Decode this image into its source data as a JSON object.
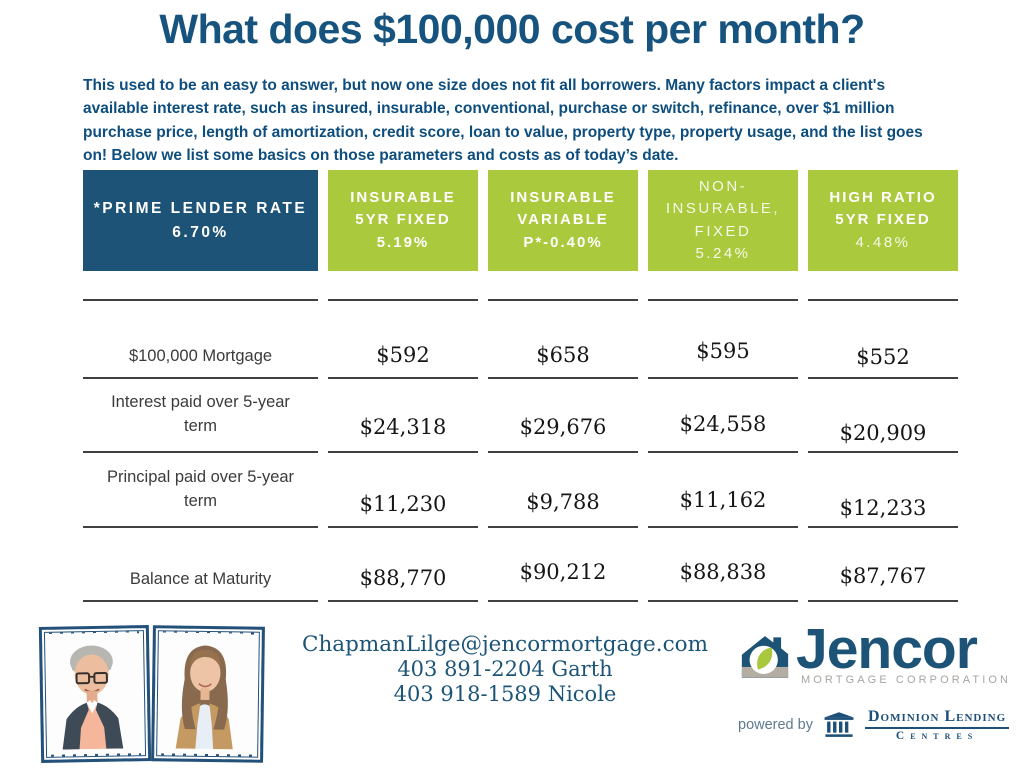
{
  "title": "What does $100,000 cost per month?",
  "intro": "This used to be an easy to answer, but now one size does not fit all borrowers. Many factors impact a client's available interest rate, such as insured, insurable, conventional, purchase or switch, refinance, over $1 million purchase price, length of amortization, credit score, loan to value, property type, property usage, and the list goes on! Below we list some basics on those parameters and costs as of today’s date.",
  "table": {
    "columns": [
      {
        "id": "prime-lender-rate",
        "style": "navy",
        "lines": [
          "*PRIME LENDER RATE",
          "6.70%"
        ],
        "light": []
      },
      {
        "id": "insurable-5yr-fixed",
        "style": "green",
        "lines": [
          "INSURABLE",
          "5YR FIXED",
          "5.19%"
        ],
        "light": []
      },
      {
        "id": "insurable-variable",
        "style": "green",
        "lines": [
          "INSURABLE",
          "VARIABLE",
          "P*-0.40%"
        ],
        "light": []
      },
      {
        "id": "non-insurable-fixed",
        "style": "green",
        "lines": [
          "NON-",
          "INSURABLE,",
          "FIXED",
          "5.24%"
        ],
        "light": [
          0,
          1,
          2,
          3
        ]
      },
      {
        "id": "high-ratio-5yr-fixed",
        "style": "green",
        "lines": [
          "HIGH RATIO",
          "5YR FIXED",
          "4.48%"
        ],
        "light": [
          2
        ]
      }
    ],
    "rows": [
      {
        "label": "$100,000 Mortgage",
        "values": [
          "$592",
          "$658",
          "$595",
          "$552"
        ]
      },
      {
        "label": "Interest paid over 5-year term",
        "values": [
          "$24,318",
          "$29,676",
          "$24,558",
          "$20,909"
        ]
      },
      {
        "label": "Principal paid over 5-year term",
        "values": [
          "$11,230",
          "$9,788",
          "$11,162",
          "$12,233"
        ]
      },
      {
        "label": "Balance at Maturity",
        "values": [
          "$88,770",
          "$90,212",
          "$88,838",
          "$87,767"
        ]
      }
    ]
  },
  "footer": {
    "email": "ChapmanLilge@jencormortgage.com",
    "phone_lines": [
      "403 891-2204 Garth",
      "403 918-1589 Nicole"
    ],
    "photos": [
      "male-advisor-portrait",
      "female-advisor-portrait"
    ],
    "jencor_logo": {
      "name": "Jencor",
      "tagline": "MORTGAGE CORPORATION"
    },
    "powered_by": "powered by",
    "dlc_logo": {
      "name": "Dominion Lending",
      "centres": "Centres"
    }
  },
  "colors": {
    "navy": "#1d5377",
    "green": "#abc93c",
    "title_blue": "#16537e",
    "intro_blue": "#0e4e7e",
    "value_black": "#161616",
    "logo_gray": "#a8a5a0",
    "dlc_navy": "#1d4f79"
  }
}
